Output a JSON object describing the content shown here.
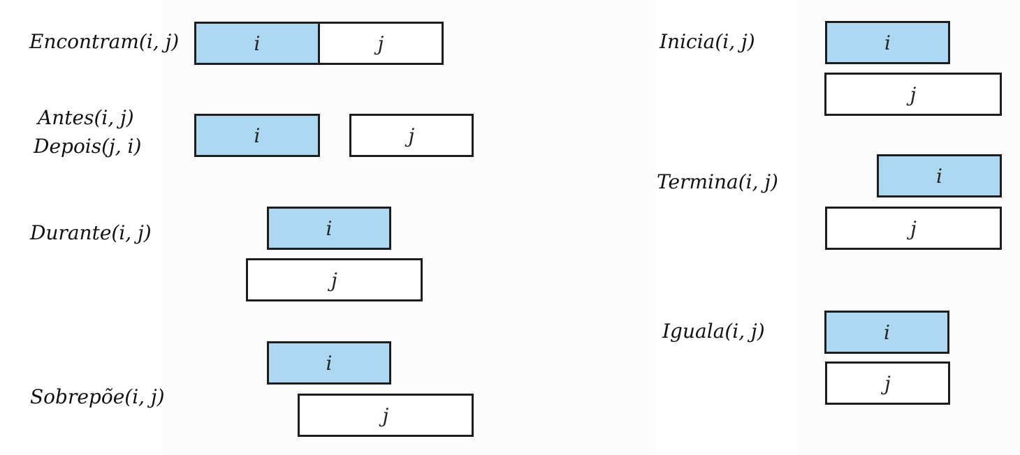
{
  "colors": {
    "interval_i_fill": "#acd8f1",
    "interval_j_fill": "#ffffff",
    "outline": "#1d1d1d",
    "text": "#111111"
  },
  "relations": {
    "encontram": {
      "label": "Encontram(i, j)",
      "i": "i",
      "j": "j"
    },
    "antes": {
      "label": "Antes(i, j)",
      "label2": "Depois(j, i)",
      "i": "i",
      "j": "j"
    },
    "durante": {
      "label": "Durante(i, j)",
      "i": "i",
      "j": "j"
    },
    "sobrepoe": {
      "label": "Sobrepõe(i, j)",
      "i": "i",
      "j": "j"
    },
    "inicia": {
      "label": "Inicia(i, j)",
      "i": "i",
      "j": "j"
    },
    "termina": {
      "label": "Termina(i, j)",
      "i": "i",
      "j": "j"
    },
    "iguala": {
      "label": "Iguala(i, j)",
      "i": "i",
      "j": "j"
    }
  }
}
